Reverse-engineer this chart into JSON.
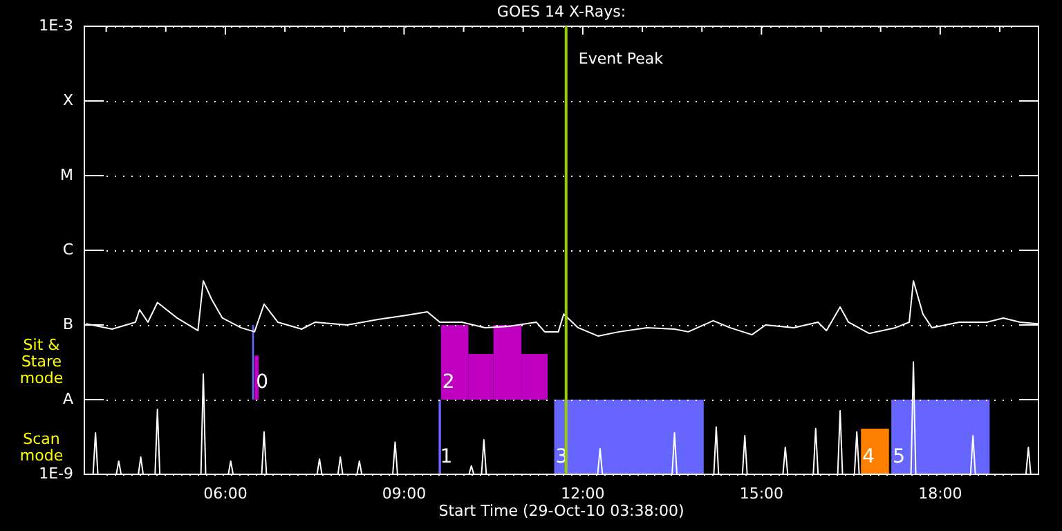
{
  "chart_data": {
    "type": "line",
    "title": "GOES 14 X-Rays:",
    "xlabel": "Start Time (29-Oct-10 03:38:00)",
    "xlim": [
      3.633,
      19.65
    ],
    "xticks": [
      {
        "value": 4,
        "label": null
      },
      {
        "value": 5,
        "label": null
      },
      {
        "value": 6,
        "label": "06:00"
      },
      {
        "value": 7,
        "label": null
      },
      {
        "value": 8,
        "label": null
      },
      {
        "value": 9,
        "label": "09:00"
      },
      {
        "value": 10,
        "label": null
      },
      {
        "value": 11,
        "label": null
      },
      {
        "value": 12,
        "label": "12:00"
      },
      {
        "value": 13,
        "label": null
      },
      {
        "value": 14,
        "label": null
      },
      {
        "value": 15,
        "label": "15:00"
      },
      {
        "value": 16,
        "label": null
      },
      {
        "value": 17,
        "label": null
      },
      {
        "value": 18,
        "label": "18:00"
      },
      {
        "value": 19,
        "label": null
      }
    ],
    "ylim": [
      1e-09,
      0.001
    ],
    "yticks": [
      {
        "value": 1e-09,
        "label": "1E-9"
      },
      {
        "value": 1e-08,
        "label": "A"
      },
      {
        "value": 1e-07,
        "label": "B"
      },
      {
        "value": 1e-06,
        "label": "C"
      },
      {
        "value": 1e-05,
        "label": "M"
      },
      {
        "value": 0.0001,
        "label": "X"
      },
      {
        "value": 0.001,
        "label": "1E-3"
      }
    ],
    "log": true,
    "grid": "y",
    "legend": false,
    "marker": "none",
    "line_style": "solid",
    "series": [
      {
        "color": "#ffffff",
        "x": [
          3.66,
          4.1,
          4.49,
          4.56,
          4.7,
          4.86,
          5.19,
          5.54,
          5.63,
          5.77,
          5.95,
          6.26,
          6.49,
          6.65,
          6.88,
          7.28,
          7.51,
          8.04,
          8.58,
          9.04,
          9.39,
          9.6,
          9.97,
          10.36,
          10.76,
          11.22,
          11.36,
          11.59,
          11.68,
          11.92,
          12.26,
          12.61,
          13.08,
          13.54,
          13.77,
          14.19,
          14.47,
          14.84,
          15.07,
          15.54,
          15.95,
          16.09,
          16.32,
          16.46,
          16.81,
          17.25,
          17.48,
          17.55,
          17.71,
          17.86,
          18.32,
          18.78,
          19.06,
          19.34,
          19.64
        ],
        "values": [
          1.04e-07,
          8.8e-08,
          1.09e-07,
          1.6e-07,
          1.09e-07,
          2e-07,
          1.24e-07,
          8.4e-08,
          3.9e-07,
          2.2e-07,
          1.24e-07,
          9.2e-08,
          8.1e-08,
          1.9e-07,
          1.09e-07,
          8.8e-08,
          1.09e-07,
          1e-07,
          1.19e-07,
          1.35e-07,
          1.5e-07,
          1.09e-07,
          1.09e-07,
          9.2e-08,
          9.6e-08,
          1.09e-07,
          8.1e-08,
          8.1e-08,
          1.4e-07,
          9.2e-08,
          7.1e-08,
          8.1e-08,
          9.2e-08,
          8.8e-08,
          8.1e-08,
          1.14e-07,
          9.2e-08,
          7.4e-08,
          1e-07,
          9.2e-08,
          1.09e-07,
          8.4e-08,
          1.74e-07,
          1.09e-07,
          7.7e-08,
          9.2e-08,
          1.09e-07,
          3.9e-07,
          1.4e-07,
          9.2e-08,
          1.09e-07,
          1.09e-07,
          1.24e-07,
          1.09e-07,
          1.04e-07
        ]
      },
      {
        "color": "#ffffff",
        "x": [
          3.66,
          3.78,
          3.82,
          3.86,
          4.17,
          4.21,
          4.25,
          4.54,
          4.58,
          4.62,
          4.82,
          4.86,
          4.9,
          5.59,
          5.63,
          5.67,
          6.05,
          6.09,
          6.13,
          6.61,
          6.65,
          6.69,
          7.54,
          7.58,
          7.62,
          7.89,
          7.93,
          7.97,
          8.21,
          8.25,
          8.29,
          8.81,
          8.85,
          8.89,
          10.09,
          10.13,
          10.17,
          10.3,
          10.34,
          10.38,
          12.25,
          12.29,
          12.33,
          13.5,
          13.54,
          13.58,
          14.2,
          14.24,
          14.28,
          14.68,
          14.72,
          14.76,
          15.36,
          15.4,
          15.44,
          15.87,
          15.91,
          15.95,
          16.28,
          16.32,
          16.36,
          16.56,
          16.6,
          16.64,
          17.51,
          17.55,
          17.59,
          18.51,
          18.55,
          18.59,
          19.44,
          19.48,
          19.52,
          19.64
        ],
        "values": [
          1e-09,
          1e-09,
          3.6e-09,
          1e-09,
          1e-09,
          1.5e-09,
          1e-09,
          1e-09,
          1.7e-09,
          1e-09,
          1e-09,
          7.4e-09,
          1e-09,
          1e-09,
          2.2e-08,
          1e-09,
          1e-09,
          1.5e-09,
          1e-09,
          1e-09,
          3.7e-09,
          1e-09,
          1e-09,
          1.6e-09,
          1e-09,
          1e-09,
          1.7e-09,
          1e-09,
          1e-09,
          1.5e-09,
          1e-09,
          1e-09,
          2.7e-09,
          1e-09,
          1e-09,
          1.3e-09,
          1e-09,
          1e-09,
          2.9e-09,
          1e-09,
          1e-09,
          2.2e-09,
          1e-09,
          1e-09,
          3.6e-09,
          1e-09,
          1e-09,
          4.3e-09,
          1e-09,
          1e-09,
          3.3e-09,
          1e-09,
          1e-09,
          2.3e-09,
          1e-09,
          1e-09,
          4.1e-09,
          1e-09,
          1e-09,
          7.1e-09,
          1e-09,
          1e-09,
          3.7e-09,
          1e-09,
          1e-09,
          3.2e-08,
          1e-09,
          1e-09,
          3.3e-09,
          1e-09,
          1e-09,
          2.3e-09,
          1e-09,
          1e-09
        ]
      }
    ],
    "ref_lines": [
      {
        "axis": "x",
        "value": 11.72,
        "label": "Event Peak",
        "color": "#99cc00"
      }
    ],
    "bands": [
      {
        "axis": "x",
        "from": 6.45,
        "to": 6.48,
        "color": "#6666ff"
      },
      {
        "axis": "x",
        "from": 6.49,
        "to": 6.56,
        "color": "#c000c0",
        "label": "0"
      },
      {
        "axis": "x",
        "from": 9.58,
        "to": 9.62,
        "color": "#6666ff",
        "label": "1"
      },
      {
        "axis": "x",
        "from": 9.62,
        "to": 10.08,
        "color": "#c000c0",
        "label": "2"
      },
      {
        "axis": "x",
        "from": 10.08,
        "to": 10.5,
        "color": "#c000c0"
      },
      {
        "axis": "x",
        "from": 10.5,
        "to": 10.97,
        "color": "#c000c0"
      },
      {
        "axis": "x",
        "from": 10.97,
        "to": 11.41,
        "color": "#c000c0"
      },
      {
        "axis": "x",
        "from": 11.52,
        "to": 14.03,
        "color": "#6666ff",
        "label": "3"
      },
      {
        "axis": "x",
        "from": 16.67,
        "to": 17.14,
        "color": "#ff7f00",
        "label": "4"
      },
      {
        "axis": "x",
        "from": 17.18,
        "to": 18.83,
        "color": "#6666ff",
        "label": "5"
      }
    ],
    "annotations": [
      "Sit & Stare mode",
      "Scan mode"
    ]
  }
}
